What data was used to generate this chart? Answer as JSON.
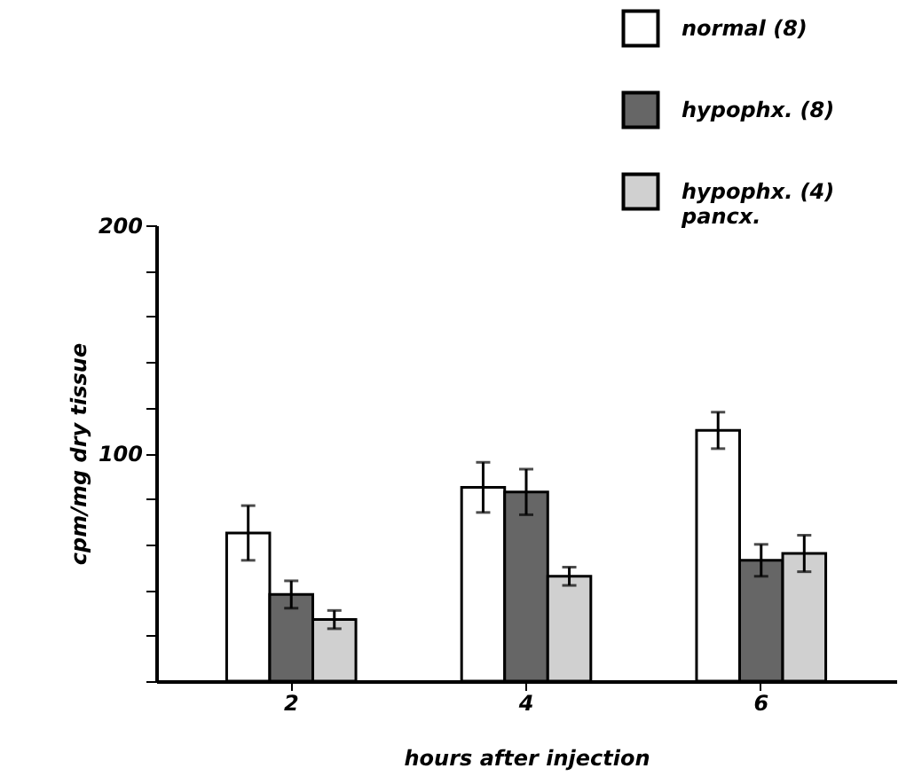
{
  "chart_data": {
    "type": "bar",
    "xlabel": "hours after injection",
    "ylabel": "cpm/mg dry tissue",
    "categories": [
      "2",
      "4",
      "6"
    ],
    "series": [
      {
        "name": "normal (8)",
        "color": "#ffffff",
        "values": [
          65,
          85,
          110
        ],
        "errors": [
          12,
          11,
          8
        ]
      },
      {
        "name": "hypophx. (8)",
        "color": "#666666",
        "values": [
          38,
          83,
          53
        ],
        "errors": [
          6,
          10,
          7
        ]
      },
      {
        "name": "hypophx. (4) pancx.",
        "color": "#d0d0d0",
        "values": [
          27,
          46,
          56
        ],
        "errors": [
          4,
          4,
          8
        ]
      }
    ],
    "ylim": [
      0,
      200
    ],
    "yticks": [
      {
        "value": 0,
        "label": null
      },
      {
        "value": 20,
        "label": null
      },
      {
        "value": 40,
        "label": null
      },
      {
        "value": 60,
        "label": null
      },
      {
        "value": 80,
        "label": null
      },
      100,
      {
        "value": 120,
        "label": null
      },
      {
        "value": 140,
        "label": null
      },
      {
        "value": 160,
        "label": null
      },
      {
        "value": 180,
        "label": null
      },
      200
    ],
    "grid": false,
    "legend": "top right"
  }
}
